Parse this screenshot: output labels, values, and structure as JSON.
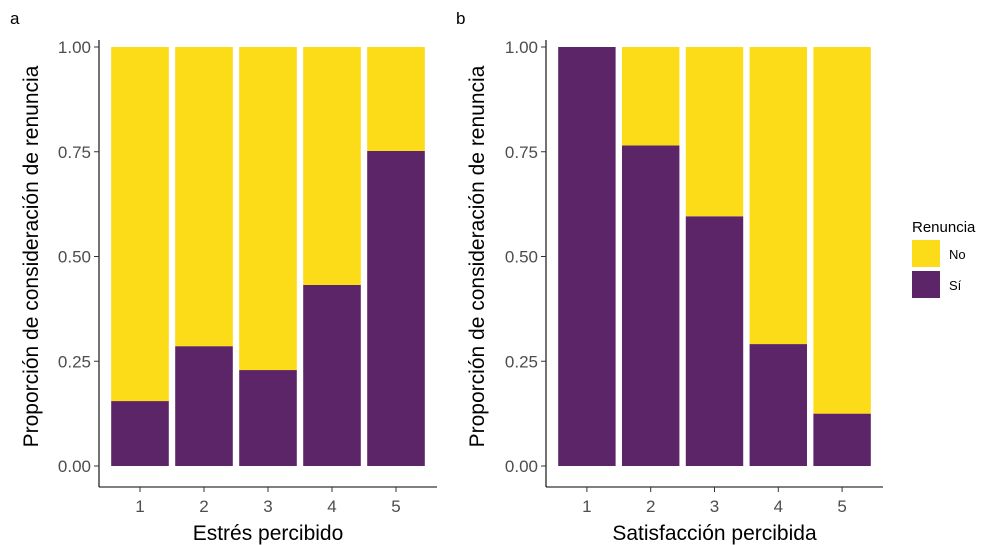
{
  "chart_data": [
    {
      "type": "bar",
      "stacked": "proportion",
      "panel_label": "a",
      "xlabel": "Estrés percibido",
      "ylabel": "Proporción de consideración de renuncia",
      "categories": [
        "1",
        "2",
        "3",
        "4",
        "5"
      ],
      "ylim": [
        0,
        1
      ],
      "yticks": [
        "0.00",
        "0.25",
        "0.50",
        "0.75",
        "1.00"
      ],
      "grid": false,
      "series": [
        {
          "name": "Sí",
          "color": "#5c2568",
          "values": [
            0.155,
            0.286,
            0.229,
            0.432,
            0.752
          ]
        },
        {
          "name": "No",
          "color": "#fcdb18",
          "values": [
            0.845,
            0.714,
            0.771,
            0.568,
            0.248
          ]
        }
      ]
    },
    {
      "type": "bar",
      "stacked": "proportion",
      "panel_label": "b",
      "xlabel": "Satisfacción percibida",
      "ylabel": "Proporción de consideración de renuncia",
      "categories": [
        "1",
        "2",
        "3",
        "4",
        "5"
      ],
      "ylim": [
        0,
        1
      ],
      "yticks": [
        "0.00",
        "0.25",
        "0.50",
        "0.75",
        "1.00"
      ],
      "grid": false,
      "series": [
        {
          "name": "Sí",
          "color": "#5c2568",
          "values": [
            1.0,
            0.765,
            0.596,
            0.291,
            0.125
          ]
        },
        {
          "name": "No",
          "color": "#fcdb18",
          "values": [
            0.0,
            0.235,
            0.404,
            0.709,
            0.875
          ]
        }
      ]
    }
  ],
  "legend": {
    "title": "Renuncia",
    "position": "right",
    "items": [
      {
        "label": "No",
        "color": "#fcdb18"
      },
      {
        "label": "Sí",
        "color": "#5c2568"
      }
    ]
  }
}
